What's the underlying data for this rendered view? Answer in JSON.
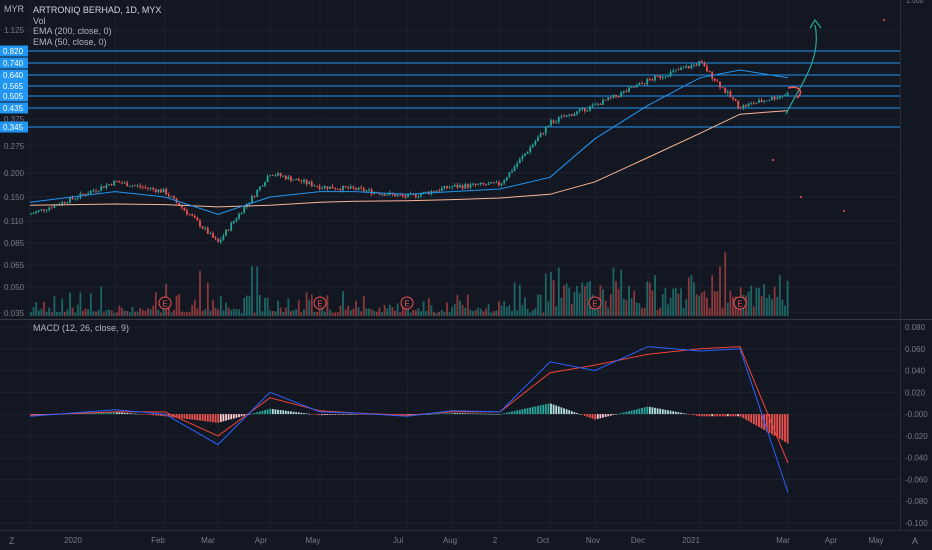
{
  "price_pane": {
    "currency": "MYR",
    "symbol_line": "ARTRONIQ BERHAD, 1D, MYX",
    "indicators": [
      "Vol",
      "EMA (200, close, 0)",
      "EMA (50, close, 0)"
    ],
    "axis_ticks": [
      "1.125",
      "0.820",
      "0.740",
      "0.640",
      "0.565",
      "0.505",
      "0.435",
      "0.375",
      "0.345",
      "0.275",
      "0.200",
      "0.150",
      "0.110",
      "0.085",
      "0.065",
      "0.050",
      "0.035"
    ],
    "top_tick_partial": "1.500",
    "highlighted_ticks": [
      "0.820",
      "0.740",
      "0.640",
      "0.565",
      "0.505",
      "0.435",
      "0.345"
    ],
    "earnings_marker": "E"
  },
  "macd_pane": {
    "title": "MACD (12, 26, close, 9)",
    "axis_ticks": [
      "0.080",
      "0.060",
      "0.040",
      "0.020",
      "-0.000",
      "-0.020",
      "-0.040",
      "-0.060",
      "-0.080",
      "-0.100"
    ]
  },
  "time_axis": {
    "labels": [
      "2020",
      "Feb",
      "Mar",
      "Apr",
      "May",
      "Jul",
      "Aug",
      "2",
      "Oct",
      "Nov",
      "Dec",
      "2021",
      "Mar",
      "Apr",
      "May"
    ],
    "corner_left": "Z",
    "corner_right": "A"
  },
  "colors": {
    "background": "#131722",
    "up": "#26a69a",
    "down": "#ef5350",
    "ema50": "#2196f3",
    "ema200": "#f7b799",
    "levels": "#2196f3",
    "macd": "#2962ff",
    "signal": "#f44336"
  },
  "chart_data": [
    {
      "type": "candlestick",
      "title": "ARTRONIQ BERHAD, 1D, MYX",
      "yscale": "log",
      "ylabel": "MYR",
      "horizontal_levels": [
        0.82,
        0.74,
        0.64,
        0.565,
        0.505,
        0.435,
        0.345
      ],
      "series": [
        {
          "name": "EMA (50, close, 0)",
          "x": [
            "2020-01",
            "2020-02",
            "2020-03",
            "2020-04",
            "2020-05",
            "2020-06",
            "2020-07",
            "2020-08",
            "2020-09",
            "2020-10",
            "2020-11",
            "2020-12",
            "2021-01",
            "2021-02",
            "2021-03",
            "2021-04"
          ],
          "values": [
            0.14,
            0.16,
            0.15,
            0.12,
            0.15,
            0.16,
            0.16,
            0.155,
            0.16,
            0.165,
            0.19,
            0.3,
            0.45,
            0.62,
            0.68,
            0.62
          ]
        },
        {
          "name": "EMA (200, close, 0)",
          "x": [
            "2020-01",
            "2020-02",
            "2020-03",
            "2020-04",
            "2020-05",
            "2020-06",
            "2020-07",
            "2020-08",
            "2020-09",
            "2020-10",
            "2020-11",
            "2020-12",
            "2021-01",
            "2021-02",
            "2021-03",
            "2021-04"
          ],
          "values": [
            0.135,
            0.137,
            0.136,
            0.132,
            0.135,
            0.14,
            0.142,
            0.143,
            0.145,
            0.148,
            0.155,
            0.18,
            0.24,
            0.32,
            0.4,
            0.42
          ]
        }
      ],
      "close_path": {
        "x": [
          "2020-01",
          "2020-02",
          "2020-03",
          "2020-04",
          "2020-05",
          "2020-06",
          "2020-07",
          "2020-08",
          "2020-09",
          "2020-10",
          "2020-11",
          "2020-12",
          "2021-01",
          "2021-02",
          "2021-03",
          "2021-04"
        ],
        "values": [
          0.12,
          0.18,
          0.16,
          0.085,
          0.2,
          0.17,
          0.165,
          0.15,
          0.17,
          0.175,
          0.36,
          0.45,
          0.6,
          0.74,
          0.44,
          0.52
        ]
      },
      "earnings_events": [
        "2020-03",
        "2020-06",
        "2020-08",
        "2020-12",
        "2021-03"
      ]
    },
    {
      "type": "line",
      "title": "MACD (12, 26, close, 9)",
      "ylim": [
        -0.1,
        0.08
      ],
      "x": [
        "2020-01",
        "2020-02",
        "2020-03",
        "2020-04",
        "2020-05",
        "2020-06",
        "2020-07",
        "2020-08",
        "2020-09",
        "2020-10",
        "2020-11",
        "2020-12",
        "2021-01",
        "2021-02",
        "2021-03",
        "2021-04"
      ],
      "series": [
        {
          "values": [
            -0.002,
            0.004,
            0.0,
            -0.028,
            0.02,
            0.002,
            0.001,
            -0.002,
            0.003,
            0.002,
            0.048,
            0.04,
            0.062,
            0.058,
            0.06,
            -0.072
          ]
        },
        {
          "values": [
            -0.001,
            0.002,
            0.002,
            -0.02,
            0.015,
            0.003,
            0.001,
            -0.001,
            0.002,
            0.002,
            0.038,
            0.045,
            0.055,
            0.06,
            0.062,
            -0.045
          ]
        }
      ]
    }
  ]
}
